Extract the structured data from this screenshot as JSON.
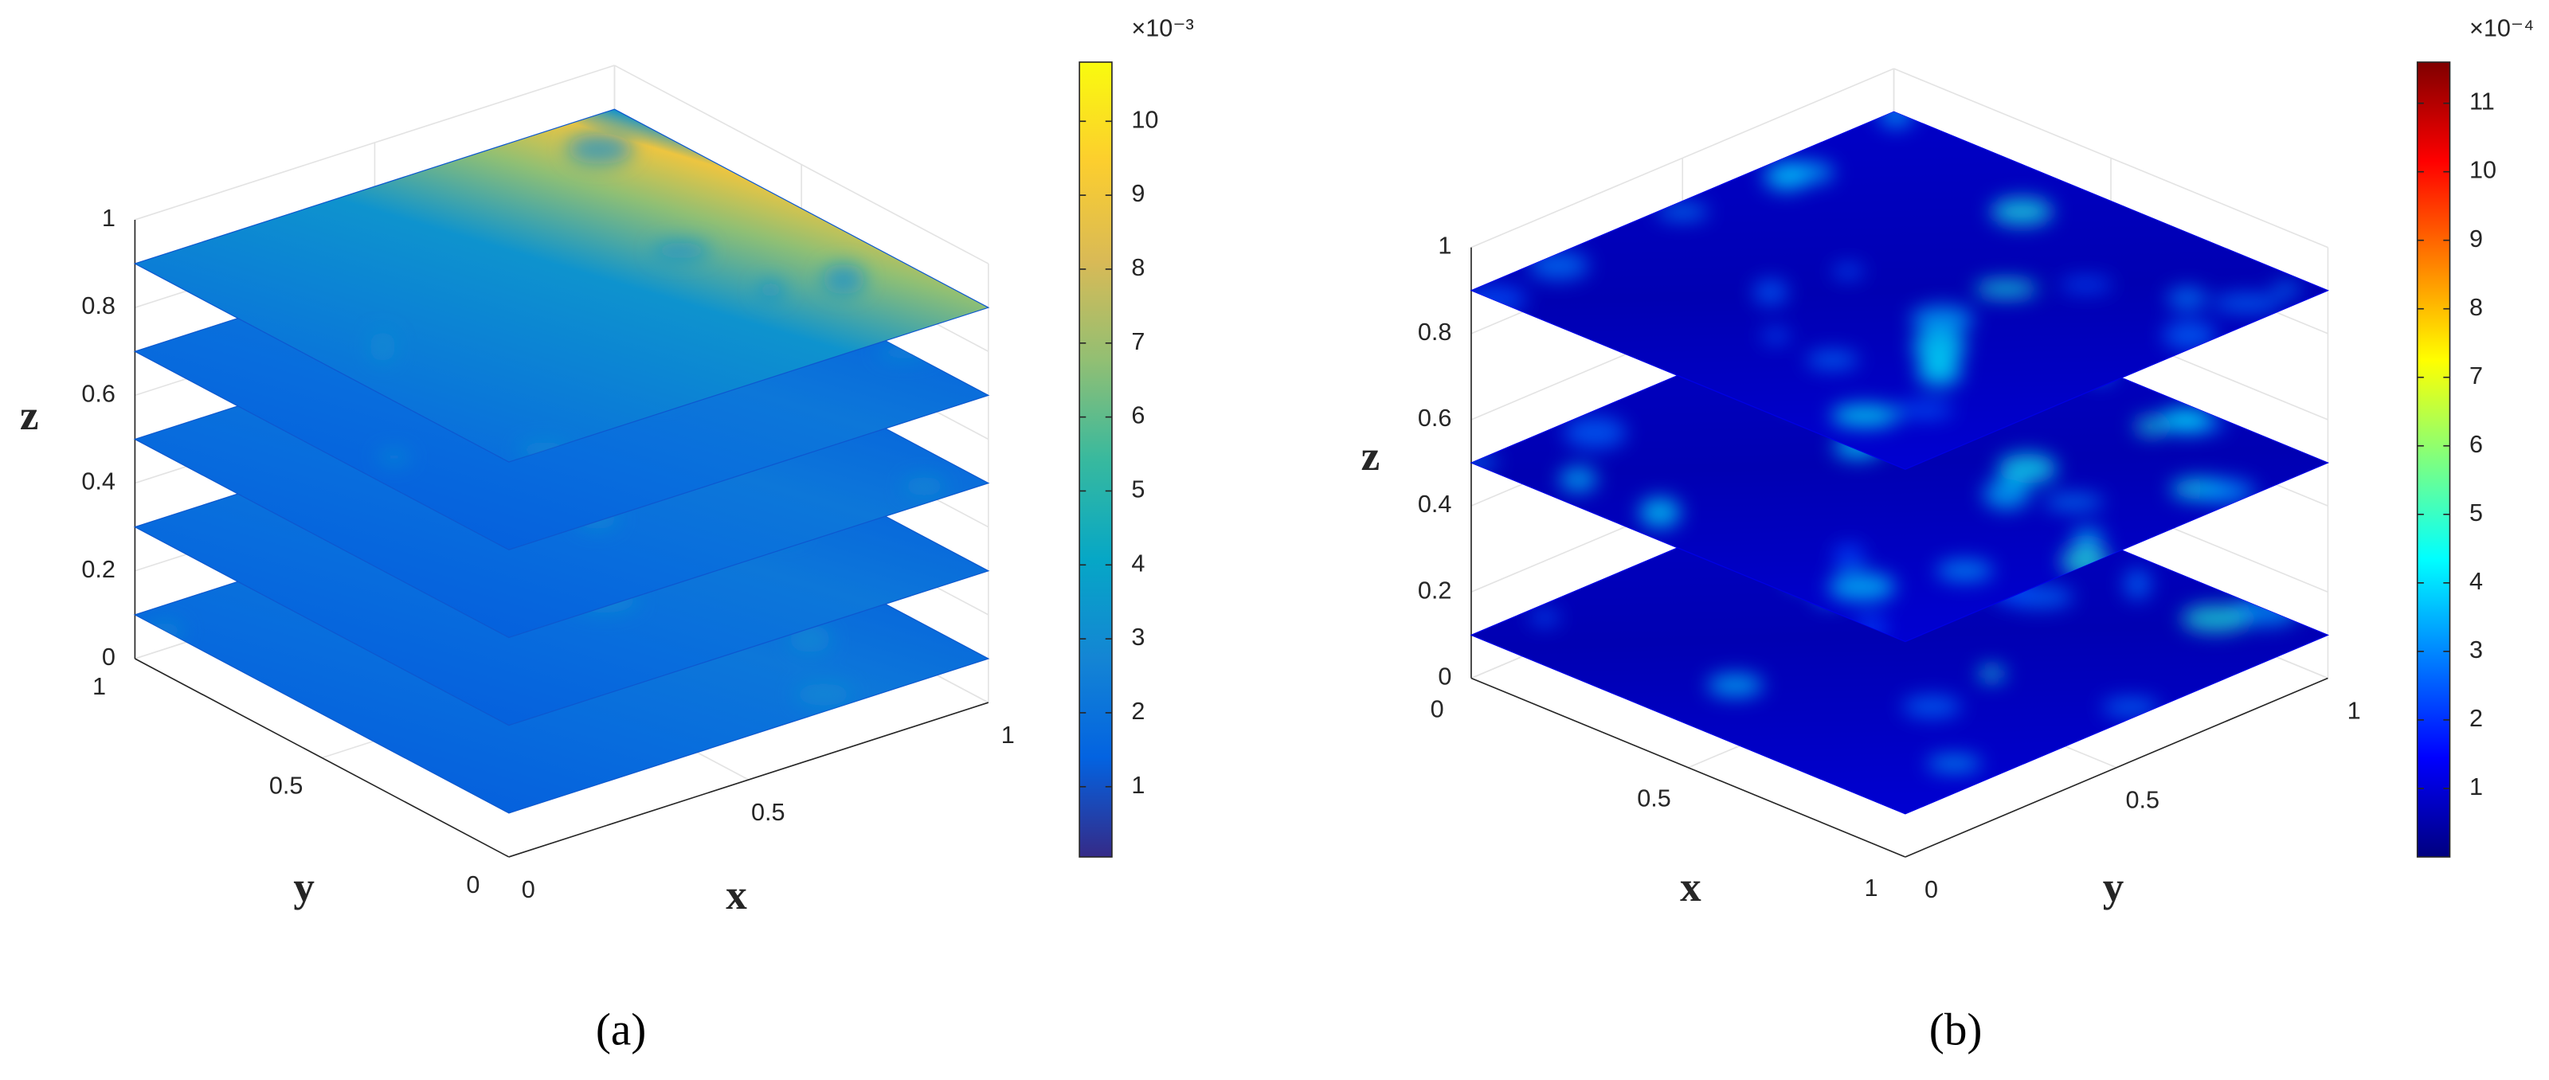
{
  "chart_data": [
    {
      "type": "slice",
      "caption": "(a)",
      "xlabel": "x",
      "ylabel": "y",
      "zlabel": "z",
      "xlim": [
        0,
        1
      ],
      "ylim": [
        0,
        1
      ],
      "zlim": [
        0,
        1
      ],
      "xticks": [
        0,
        0.5,
        1
      ],
      "yticks": [
        0,
        0.5,
        1
      ],
      "zticks": [
        0,
        0.2,
        0.4,
        0.6,
        0.8,
        1
      ],
      "slice_z": [
        0.1,
        0.3,
        0.5,
        0.7,
        0.9
      ],
      "grid": true,
      "colormap": [
        "#352a87",
        "#0363e1",
        "#1485d4",
        "#06a7c6",
        "#38b99e",
        "#92bf73",
        "#d9ba56",
        "#fcce2e",
        "#f9fb0e"
      ],
      "colorbar_lim": [
        0.05,
        10.8
      ],
      "colorbar_ticks": [
        1,
        2,
        3,
        4,
        5,
        6,
        7,
        8,
        9,
        10
      ],
      "colorbar_scale": "×10⁻³"
    },
    {
      "type": "slice",
      "caption": "(b)",
      "xlabel": "x",
      "ylabel": "y",
      "zlabel": "z",
      "xlim": [
        0,
        1
      ],
      "ylim": [
        0,
        1
      ],
      "zlim": [
        0,
        1
      ],
      "xticks": [
        0,
        0.5,
        1
      ],
      "yticks": [
        0,
        0.5,
        1
      ],
      "zticks": [
        0,
        0.2,
        0.4,
        0.6,
        0.8,
        1
      ],
      "slice_z": [
        0.1,
        0.5,
        0.9
      ],
      "grid": true,
      "colormap": [
        "#00007f",
        "#0000ff",
        "#007fff",
        "#00ffff",
        "#7fff7f",
        "#ffff00",
        "#ff7f00",
        "#ff0000",
        "#7f0000"
      ],
      "colorbar_lim": [
        0,
        11.6
      ],
      "colorbar_ticks": [
        1,
        2,
        3,
        4,
        5,
        6,
        7,
        8,
        9,
        10,
        11
      ],
      "colorbar_scale": "×10⁻⁴"
    }
  ]
}
